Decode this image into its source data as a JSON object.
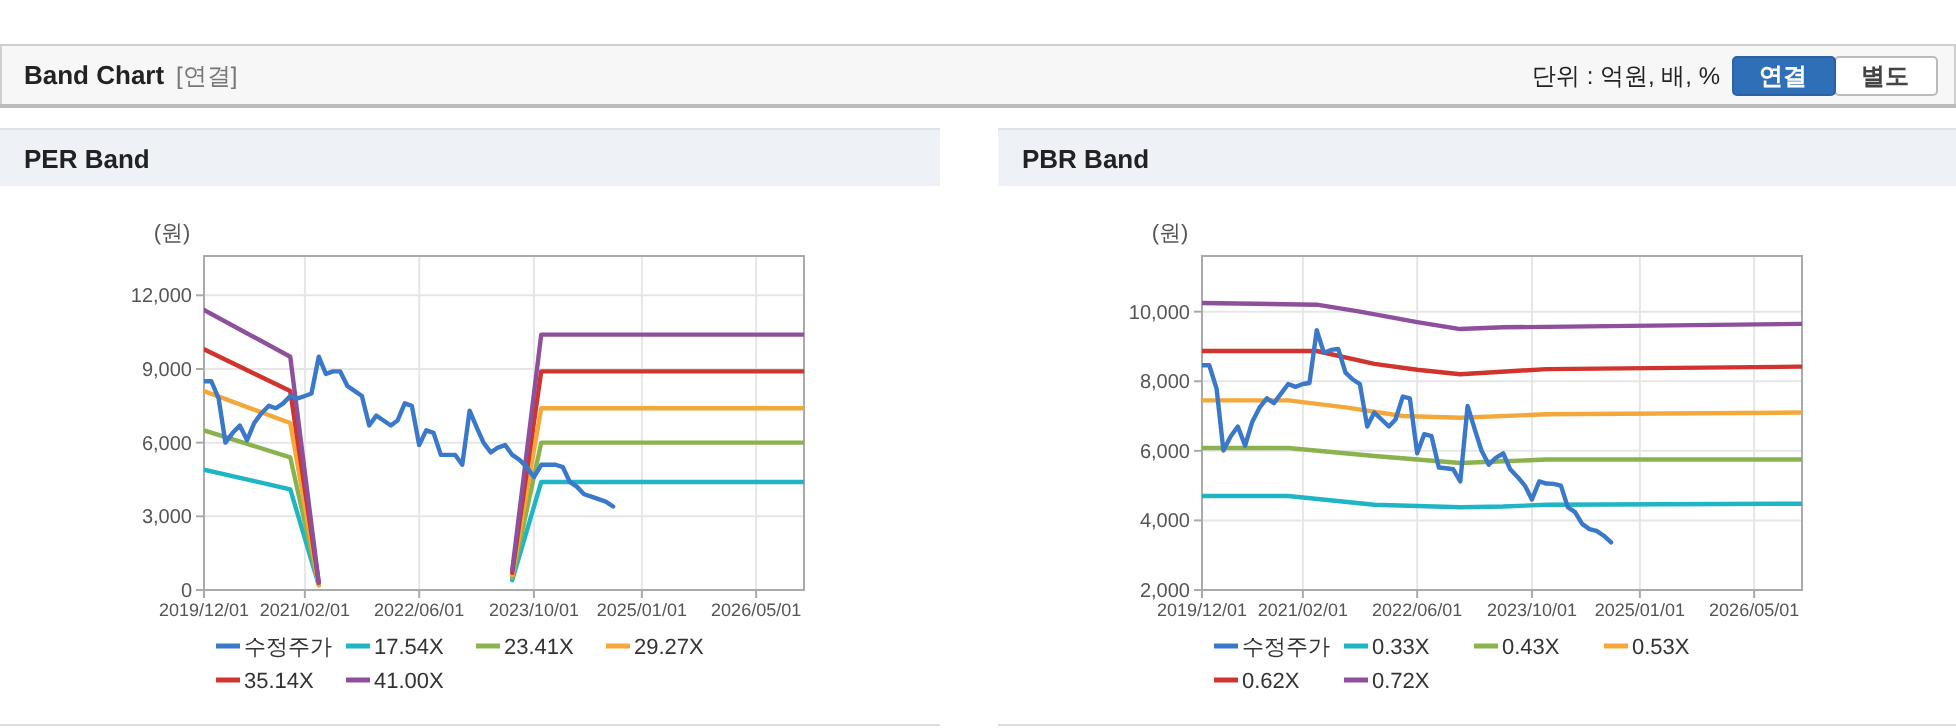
{
  "chart_data": [
    {
      "type": "other",
      "title": "Band Chart",
      "subtitle": "[연결]",
      "annotations": [
        "단위 : 억원, 배, %",
        "연결",
        "별도"
      ]
    },
    {
      "type": "line",
      "title": "PER Band",
      "ylabel": "(원)",
      "grid": true,
      "legend": "bottom",
      "xlim": [
        "2019-12-01",
        "2026-11-20"
      ],
      "ylim": [
        0,
        13600
      ],
      "xticks": [
        {
          "value": "2019-12-01",
          "label": "2019/12/01"
        },
        {
          "value": "2021-02-01",
          "label": "2021/02/01"
        },
        {
          "value": "2022-06-01",
          "label": "2022/06/01"
        },
        {
          "value": "2023-10-01",
          "label": "2023/10/01"
        },
        {
          "value": "2025-01-01",
          "label": "2025/01/01"
        },
        {
          "value": "2026-05-01",
          "label": "2026/05/01"
        }
      ],
      "yticks": [
        0,
        {
          "value": 3000,
          "label": "3,000"
        },
        {
          "value": 6000,
          "label": "6,000"
        },
        {
          "value": 9000,
          "label": "9,000"
        },
        {
          "value": 12000,
          "label": "12,000"
        }
      ],
      "series": [
        {
          "name": "수정주가",
          "color": "#3a78c9",
          "x": [
            "2019-12",
            "2020-01",
            "2020-02",
            "2020-03",
            "2020-04",
            "2020-05",
            "2020-06",
            "2020-07",
            "2020-08",
            "2020-09",
            "2020-10",
            "2020-11",
            "2020-12",
            "2021-01",
            "2021-02",
            "2021-03",
            "2021-04",
            "2021-05",
            "2021-06",
            "2021-07",
            "2021-08",
            "2021-09",
            "2021-10",
            "2021-11",
            "2021-12",
            "2022-01",
            "2022-02",
            "2022-03",
            "2022-04",
            "2022-05",
            "2022-06",
            "2022-07",
            "2022-08",
            "2022-09",
            "2022-10",
            "2022-11",
            "2022-12",
            "2023-01",
            "2023-02",
            "2023-03",
            "2023-04",
            "2023-05",
            "2023-06",
            "2023-07",
            "2023-08",
            "2023-09",
            "2023-10",
            "2023-11",
            "2023-12",
            "2024-01",
            "2024-02",
            "2024-03",
            "2024-04",
            "2024-05",
            "2024-06",
            "2024-07",
            "2024-08",
            "2024-09"
          ],
          "values": [
            8500,
            8500,
            7800,
            6000,
            6400,
            6700,
            6100,
            6800,
            7200,
            7500,
            7400,
            7600,
            7900,
            7800,
            7900,
            8000,
            9500,
            8800,
            8900,
            8900,
            8300,
            8100,
            7900,
            6700,
            7100,
            6900,
            6700,
            6900,
            7600,
            7500,
            5900,
            6500,
            6400,
            5500,
            5500,
            5500,
            5100,
            7300,
            6600,
            6000,
            5600,
            5800,
            5900,
            5500,
            5300,
            5000,
            4600,
            5100,
            5100,
            5100,
            5000,
            4400,
            4200,
            3900,
            3800,
            3700,
            3600,
            3400
          ]
        },
        {
          "name": "17.54X",
          "color": "#1fb5c4",
          "x": [
            "2019-12",
            "2020-12",
            "2021-04"
          ],
          "values": [
            4900,
            4100,
            200
          ]
        },
        {
          "name": "23.41X",
          "color": "#8ab24e",
          "x": [
            "2019-12",
            "2020-12",
            "2021-04"
          ],
          "values": [
            6500,
            5400,
            200
          ]
        },
        {
          "name": "29.27X",
          "color": "#f5a83a",
          "x": [
            "2019-12",
            "2020-12",
            "2021-04"
          ],
          "values": [
            8100,
            6800,
            200
          ]
        },
        {
          "name": "35.14X",
          "color": "#d0342c",
          "x": [
            "2019-12",
            "2020-12",
            "2021-04"
          ],
          "values": [
            9800,
            8100,
            300
          ]
        },
        {
          "name": "41.00X",
          "color": "#8e4f9c",
          "x": [
            "2019-12",
            "2020-12",
            "2021-04"
          ],
          "values": [
            11400,
            9500,
            300
          ]
        },
        {
          "color": "#1fb5c4",
          "x": [
            "2023-07",
            "2023-11",
            "2026-11-20"
          ],
          "values": [
            400,
            4400,
            4400
          ]
        },
        {
          "color": "#8ab24e",
          "x": [
            "2023-07",
            "2023-11",
            "2026-11-20"
          ],
          "values": [
            500,
            6000,
            6000
          ]
        },
        {
          "color": "#f5a83a",
          "x": [
            "2023-07",
            "2023-11",
            "2026-11-20"
          ],
          "values": [
            600,
            7400,
            7400
          ]
        },
        {
          "color": "#d0342c",
          "x": [
            "2023-07",
            "2023-11",
            "2026-11-20"
          ],
          "values": [
            700,
            8900,
            8900
          ]
        },
        {
          "color": "#8e4f9c",
          "x": [
            "2023-07",
            "2023-11",
            "2026-11-20"
          ],
          "values": [
            800,
            10400,
            10400
          ]
        }
      ]
    },
    {
      "type": "line",
      "title": "PBR Band",
      "ylabel": "(원)",
      "grid": true,
      "legend": "bottom",
      "xlim": [
        "2019-12-01",
        "2026-11-20"
      ],
      "ylim": [
        2000,
        11600
      ],
      "xticks": [
        {
          "value": "2019-12-01",
          "label": "2019/12/01"
        },
        {
          "value": "2021-02-01",
          "label": "2021/02/01"
        },
        {
          "value": "2022-06-01",
          "label": "2022/06/01"
        },
        {
          "value": "2023-10-01",
          "label": "2023/10/01"
        },
        {
          "value": "2025-01-01",
          "label": "2025/01/01"
        },
        {
          "value": "2026-05-01",
          "label": "2026/05/01"
        }
      ],
      "yticks": [
        {
          "value": 2000,
          "label": "2,000"
        },
        {
          "value": 4000,
          "label": "4,000"
        },
        {
          "value": 6000,
          "label": "6,000"
        },
        {
          "value": 8000,
          "label": "8,000"
        },
        {
          "value": 10000,
          "label": "10,000"
        }
      ],
      "series": [
        {
          "name": "수정주가",
          "color": "#3a78c9",
          "x": [
            "2019-12",
            "2020-01",
            "2020-02",
            "2020-03",
            "2020-04",
            "2020-05",
            "2020-06",
            "2020-07",
            "2020-08",
            "2020-09",
            "2020-10",
            "2020-11",
            "2020-12",
            "2021-01",
            "2021-02",
            "2021-03",
            "2021-04",
            "2021-05",
            "2021-06",
            "2021-07",
            "2021-08",
            "2021-09",
            "2021-10",
            "2021-11",
            "2021-12",
            "2022-01",
            "2022-02",
            "2022-03",
            "2022-04",
            "2022-05",
            "2022-06",
            "2022-07",
            "2022-08",
            "2022-09",
            "2022-10",
            "2022-11",
            "2022-12",
            "2023-01",
            "2023-02",
            "2023-03",
            "2023-04",
            "2023-05",
            "2023-06",
            "2023-07",
            "2023-08",
            "2023-09",
            "2023-10",
            "2023-11",
            "2023-12",
            "2024-01",
            "2024-02",
            "2024-03",
            "2024-04",
            "2024-05",
            "2024-06",
            "2024-07",
            "2024-08",
            "2024-09"
          ],
          "values": [
            8460,
            8460,
            7780,
            6010,
            6420,
            6700,
            6150,
            6830,
            7240,
            7510,
            7370,
            7650,
            7920,
            7840,
            7920,
            7950,
            9470,
            8820,
            8900,
            8930,
            8250,
            8050,
            7920,
            6700,
            7100,
            6900,
            6700,
            6900,
            7560,
            7510,
            5930,
            6480,
            6420,
            5520,
            5500,
            5470,
            5120,
            7290,
            6600,
            6010,
            5600,
            5800,
            5930,
            5470,
            5250,
            5000,
            4600,
            5120,
            5060,
            5050,
            5000,
            4380,
            4240,
            3900,
            3750,
            3700,
            3560,
            3370
          ]
        },
        {
          "name": "0.33X",
          "color": "#1fb5c4",
          "x": [
            "2019-12",
            "2020-12",
            "2021-12",
            "2022-12",
            "2023-06",
            "2023-12",
            "2026-11-20"
          ],
          "values": [
            4700,
            4700,
            4450,
            4380,
            4400,
            4450,
            4480
          ]
        },
        {
          "name": "0.43X",
          "color": "#8ab24e",
          "x": [
            "2019-12",
            "2020-12",
            "2021-12",
            "2022-12",
            "2023-06",
            "2023-12",
            "2026-11-20"
          ],
          "values": [
            6080,
            6080,
            5850,
            5650,
            5700,
            5750,
            5750
          ]
        },
        {
          "name": "0.53X",
          "color": "#f5a83a",
          "x": [
            "2019-12",
            "2020-12",
            "2021-08",
            "2022-04",
            "2022-12",
            "2023-12",
            "2026-11-20"
          ],
          "values": [
            7450,
            7450,
            7250,
            7000,
            6950,
            7050,
            7100
          ]
        },
        {
          "name": "0.62X",
          "color": "#d0342c",
          "x": [
            "2019-12",
            "2021-04",
            "2021-12",
            "2022-06",
            "2022-12",
            "2023-12",
            "2026-11-20"
          ],
          "values": [
            8870,
            8870,
            8500,
            8330,
            8200,
            8350,
            8420
          ]
        },
        {
          "name": "0.72X",
          "color": "#8e4f9c",
          "x": [
            "2019-12",
            "2021-04",
            "2021-10",
            "2022-06",
            "2022-12",
            "2023-06",
            "2026-11-20"
          ],
          "values": [
            10250,
            10200,
            10000,
            9700,
            9500,
            9550,
            9650
          ]
        }
      ]
    }
  ]
}
